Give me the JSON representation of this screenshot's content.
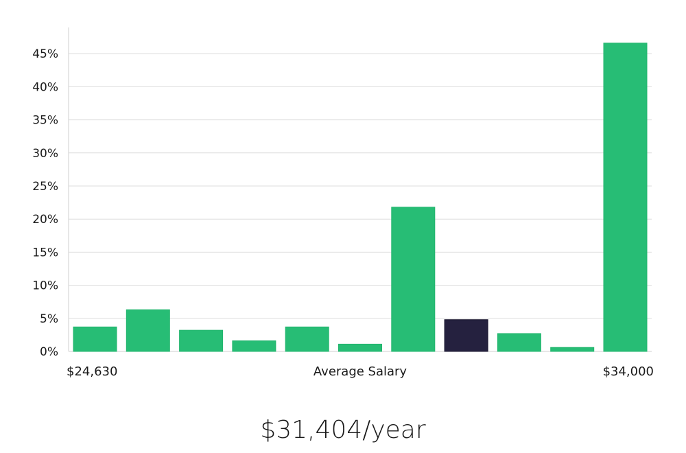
{
  "chart_data": {
    "type": "bar",
    "title": "",
    "xlabel": "Average Salary",
    "ylabel": "",
    "x_min_label": "$24,630",
    "x_max_label": "$34,000",
    "ylim": [
      0,
      49
    ],
    "yticks": [
      0,
      5,
      10,
      15,
      20,
      25,
      30,
      35,
      40,
      45
    ],
    "ytick_suffix": "%",
    "grid": true,
    "values": [
      3.7,
      6.3,
      3.2,
      1.6,
      3.7,
      1.1,
      21.8,
      4.8,
      2.7,
      0.6,
      46.6
    ],
    "highlight_index": 7,
    "colors": {
      "bar": "#27bd75",
      "highlight": "#25213f",
      "grid": "#dcdcdc",
      "axis": "#cfcfcf",
      "text": "#1a1a1a"
    }
  },
  "salary": {
    "label": "$31,404/year"
  }
}
